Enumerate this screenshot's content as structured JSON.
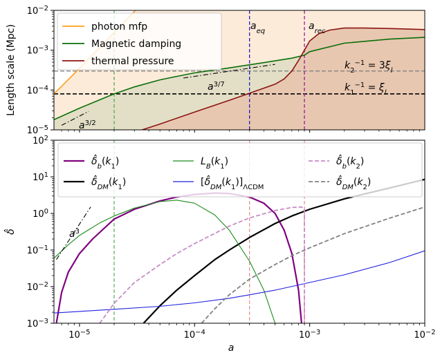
{
  "colors": {
    "photon": "#ff9f1c",
    "magnetic": "#0a6e0a",
    "thermal": "#8b1212",
    "purple": "#800080",
    "purple_light": "#c78ac7",
    "black": "#000000",
    "lb_green": "#1a8c1a",
    "blue": "#1f1fdd",
    "gray": "#808080",
    "eq_line": "#2020c0",
    "rec_line": "#9b1a9b",
    "green_vline": "#5aa95a",
    "pink_vline": "#e38a8a",
    "fill_peach": "#fdebd9",
    "fill_olive": "#e2dfc6",
    "fill_brown": "#e8c7b0"
  },
  "chart_data": [
    {
      "type": "line",
      "panel": "top",
      "xscale": "log",
      "yscale": "log",
      "xlim": [
        6e-06,
        0.01
      ],
      "ylim": [
        1e-05,
        0.01
      ],
      "xlabel": "",
      "ylabel": "Length scale (Mpc)",
      "yticks": [
        {
          "base": "10",
          "exp": "−5"
        },
        {
          "base": "10",
          "exp": "−4"
        },
        {
          "base": "10",
          "exp": "−3"
        },
        {
          "base": "10",
          "exp": "−2"
        }
      ],
      "legend": {
        "position": "top-left",
        "entries": [
          {
            "label": "photon mfp",
            "color": "#ff9f1c"
          },
          {
            "label": "Magnetic damping",
            "color": "#0a6e0a"
          },
          {
            "label": "thermal pressure",
            "color": "#8b1212"
          }
        ]
      },
      "series": [
        {
          "name": "photon mfp",
          "style": "solid",
          "x": [
            6e-06,
            1e-05,
            2e-05,
            3e-05,
            4.5e-05
          ],
          "y": [
            8e-05,
            0.00035,
            0.0028,
            0.0094,
            0.032
          ]
        },
        {
          "name": "Magnetic damping",
          "style": "solid",
          "x": [
            6e-06,
            1e-05,
            2e-05,
            3e-05,
            5e-05,
            7e-05,
            0.0001,
            0.0002,
            0.0003,
            0.0005,
            0.0007,
            0.0009,
            0.001,
            0.002,
            0.005,
            0.01
          ],
          "y": [
            1.8e-05,
            3.5e-05,
            8e-05,
            0.00012,
            0.00018,
            0.00022,
            0.00027,
            0.00036,
            0.00043,
            0.00054,
            0.00063,
            0.00075,
            0.00092,
            0.0015,
            0.0019,
            0.0021
          ]
        },
        {
          "name": "thermal pressure",
          "style": "solid",
          "x": [
            3.5e-05,
            5e-05,
            0.0001,
            0.0002,
            0.0003,
            0.0005,
            0.0006,
            0.0007,
            0.0008,
            0.0009,
            0.001,
            0.0012,
            0.0015,
            0.002,
            0.003,
            0.005,
            0.01
          ],
          "y": [
            1e-05,
            1.4e-05,
            2.8e-05,
            5.5e-05,
            8.3e-05,
            0.00014,
            0.00019,
            0.0003,
            0.00055,
            0.001,
            0.0017,
            0.0026,
            0.0032,
            0.0036,
            0.0036,
            0.0035,
            0.0033
          ]
        },
        {
          "name": "",
          "style": "dashdot",
          "color": "#000000",
          "x": [
            7e-06,
            1.2e-05
          ],
          "y": [
            1.3e-05,
            2.9e-05
          ]
        },
        {
          "name": "",
          "style": "dashdot",
          "color": "#000000",
          "x": [
            8e-05,
            0.0005
          ],
          "y": [
            0.0002,
            0.00044
          ]
        }
      ],
      "hlines": [
        {
          "y": 0.0003,
          "style": "dashed",
          "color": "#808080"
        },
        {
          "y": 8e-05,
          "style": "dashed",
          "color": "#000000"
        }
      ],
      "vlines": [
        {
          "x": 2e-05,
          "style": "dashed",
          "color": "#5aa95a"
        },
        {
          "x": 0.0003,
          "style": "dashed",
          "color": "#2020c0"
        },
        {
          "x": 0.0009,
          "style": "dashed",
          "color": "#9b1a9b"
        }
      ],
      "annotations": [
        {
          "id": "a-eq",
          "base": "a",
          "sub": "eq"
        },
        {
          "id": "a-rec",
          "base": "a",
          "sub": "rec"
        },
        {
          "id": "a-3-2",
          "base": "a",
          "sup": "3/2"
        },
        {
          "id": "a-3-7",
          "base": "a",
          "sup": "3/7"
        },
        {
          "id": "k2-label",
          "text": "k₂⁻¹ = 3ξ",
          "sub": "l"
        },
        {
          "id": "k1-label",
          "text": "k₁⁻¹ = ξ",
          "sub": "l"
        }
      ]
    },
    {
      "type": "line",
      "panel": "bottom",
      "xscale": "log",
      "yscale": "log",
      "xlim": [
        6e-06,
        0.01
      ],
      "ylim": [
        0.001,
        100.0
      ],
      "xlabel": "a",
      "ylabel": "δ̂",
      "xticks": [
        {
          "base": "10",
          "exp": "−5"
        },
        {
          "base": "10",
          "exp": "−4"
        },
        {
          "base": "10",
          "exp": "−3"
        },
        {
          "base": "10",
          "exp": "−2"
        }
      ],
      "yticks": [
        {
          "base": "10",
          "exp": "−3"
        },
        {
          "base": "10",
          "exp": "−2"
        },
        {
          "base": "10",
          "exp": "−1"
        },
        {
          "base": "10",
          "exp": "0"
        },
        {
          "base": "10",
          "exp": "1"
        },
        {
          "base": "10",
          "exp": "2"
        }
      ],
      "legend": {
        "position": "top",
        "columns": 3,
        "entries": [
          {
            "label": "δ̂_b(k₁)",
            "color": "#800080",
            "style": "solid"
          },
          {
            "label": "L_B(k₁)",
            "color": "#1a8c1a",
            "style": "solid"
          },
          {
            "label": "δ̂_b(k₂)",
            "color": "#c78ac7",
            "style": "dashed"
          },
          {
            "label": "δ̂_DM(k₁)",
            "color": "#000000",
            "style": "solid"
          },
          {
            "label": "[δ̂_DM(k₁)]ΛCDM",
            "color": "#1f1fdd",
            "style": "solid"
          },
          {
            "label": "δ̂_DM(k₂)",
            "color": "#808080",
            "style": "dashed"
          }
        ]
      },
      "series": [
        {
          "name": "δ̂_b(k₁)",
          "color": "#800080",
          "style": "solid",
          "x": [
            6.3e-06,
            7e-06,
            8e-06,
            1e-05,
            1.3e-05,
            2e-05,
            3e-05,
            5e-05,
            7e-05,
            0.0001,
            0.00015,
            0.0002,
            0.0003,
            0.0004,
            0.0005,
            0.0006,
            0.0007,
            0.0008,
            0.00085
          ],
          "y": [
            0.001,
            0.007,
            0.025,
            0.08,
            0.2,
            0.7,
            1.3,
            2.2,
            2.8,
            3.3,
            3.6,
            3.5,
            2.8,
            1.9,
            1.0,
            0.35,
            0.08,
            0.008,
            0.001
          ]
        },
        {
          "name": "δ̂_DM(k₁)",
          "color": "#000000",
          "style": "solid",
          "x": [
            3.6e-05,
            5e-05,
            7e-05,
            0.0001,
            0.00015,
            0.0002,
            0.0003,
            0.0005,
            0.0007,
            0.001,
            0.002,
            0.005,
            0.01
          ],
          "y": [
            0.001,
            0.003,
            0.008,
            0.02,
            0.055,
            0.1,
            0.22,
            0.53,
            0.85,
            1.3,
            2.5,
            5,
            8.5
          ]
        },
        {
          "name": "L_B(k₁)",
          "color": "#1a8c1a",
          "style": "solid",
          "x": [
            6e-06,
            8e-06,
            1e-05,
            1.5e-05,
            2e-05,
            3e-05,
            5e-05,
            7e-05,
            0.0001,
            0.00015,
            0.0002,
            0.0003,
            0.0004,
            0.0005
          ],
          "y": [
            0.06,
            0.14,
            0.25,
            0.55,
            0.85,
            1.4,
            2.1,
            2.3,
            1.9,
            0.9,
            0.35,
            0.05,
            0.008,
            0.001
          ]
        },
        {
          "name": "[δ̂_DM(k₁)]ΛCDM",
          "color": "#1f1fdd",
          "style": "solid",
          "x": [
            6e-06,
            1e-05,
            2e-05,
            5e-05,
            0.0001,
            0.0002,
            0.0003,
            0.0005,
            0.001,
            0.002,
            0.005,
            0.01
          ],
          "y": [
            0.0019,
            0.0021,
            0.0024,
            0.0029,
            0.0036,
            0.0048,
            0.006,
            0.008,
            0.013,
            0.021,
            0.046,
            0.095
          ]
        },
        {
          "name": "δ̂_b(k₂)",
          "color": "#c78ac7",
          "style": "dashed",
          "x": [
            1.5e-05,
            2e-05,
            3e-05,
            5e-05,
            7e-05,
            0.0001,
            0.0002,
            0.0003,
            0.0005,
            0.0007,
            0.00085,
            0.0009,
            0.0009
          ],
          "y": [
            0.001,
            0.0035,
            0.013,
            0.04,
            0.08,
            0.15,
            0.45,
            0.75,
            1.2,
            1.45,
            1.5,
            1.3,
            0.001
          ]
        },
        {
          "name": "δ̂_DM(k₂)",
          "color": "#808080",
          "style": "dashed",
          "x": [
            0.000115,
            0.00015,
            0.0002,
            0.0003,
            0.0005,
            0.0007,
            0.001,
            0.002,
            0.005,
            0.01
          ],
          "y": [
            0.001,
            0.0025,
            0.006,
            0.016,
            0.04,
            0.07,
            0.115,
            0.28,
            0.75,
            1.5
          ]
        },
        {
          "name": "",
          "color": "#000000",
          "style": "dashdot",
          "x": [
            6.3e-06,
            1.25e-05
          ],
          "y": [
            0.055,
            1.5
          ]
        }
      ],
      "vlines": [
        {
          "x": 2e-05,
          "style": "dashed",
          "color": "#5aa95a"
        },
        {
          "x": 0.0003,
          "style": "dashed",
          "color": "#e38a8a"
        },
        {
          "x": 0.0009,
          "style": "dashed",
          "color": "#e38a8a"
        }
      ],
      "annotations": [
        {
          "id": "a-3",
          "base": "a",
          "sup": "3"
        }
      ]
    }
  ]
}
